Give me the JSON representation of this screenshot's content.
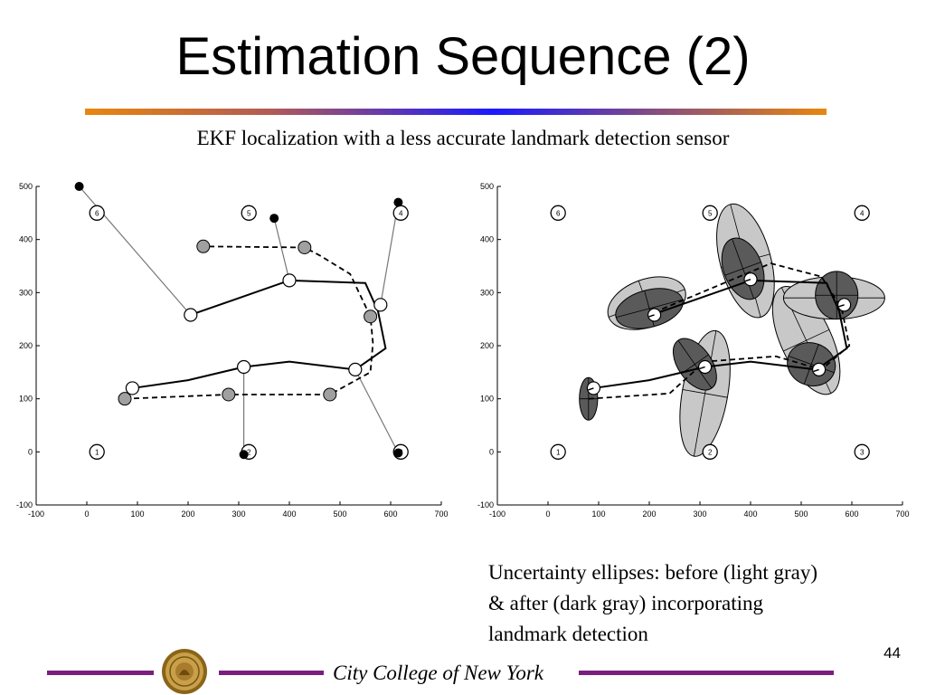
{
  "slide": {
    "title": "Estimation Sequence (2)",
    "subtitle": "EKF localization with a less accurate landmark detection sensor",
    "caption": [
      "Uncertainty ellipses: before (light gray)",
      "& after (dark gray) incorporating",
      "landmark detection"
    ],
    "page_number": "44",
    "footer": "City College of New York"
  },
  "colors": {
    "title_rule": [
      "#e8870e",
      "#1a1aff"
    ],
    "footer_rule": "#7a1f7f",
    "light_gray": "#c8c8c8",
    "dark_gray": "#5a5a5a",
    "marker_gray": "#a0a0a0"
  },
  "chart_data": [
    {
      "type": "line",
      "title": "",
      "xlabel": "",
      "ylabel": "",
      "xlim": [
        -100,
        700
      ],
      "ylim": [
        -100,
        500
      ],
      "x_ticks": [
        "-100",
        "0",
        "100",
        "200",
        "300",
        "400",
        "500",
        "600",
        "700"
      ],
      "y_ticks": [
        "-100",
        "0",
        "100",
        "200",
        "300",
        "400",
        "500"
      ],
      "landmarks": [
        {
          "label": "1",
          "x": 20,
          "y": 0
        },
        {
          "label": "2",
          "x": 320,
          "y": 0
        },
        {
          "label": "3",
          "x": 620,
          "y": 0
        },
        {
          "label": "4",
          "x": 620,
          "y": 450
        },
        {
          "label": "5",
          "x": 320,
          "y": 450
        },
        {
          "label": "6",
          "x": 20,
          "y": 450
        }
      ],
      "true_path": [
        [
          90,
          120
        ],
        [
          200,
          135
        ],
        [
          310,
          160
        ],
        [
          400,
          170
        ],
        [
          530,
          155
        ],
        [
          590,
          195
        ],
        [
          575,
          265
        ],
        [
          550,
          318
        ],
        [
          400,
          323
        ],
        [
          205,
          258
        ]
      ],
      "estimated_path": [
        [
          75,
          100
        ],
        [
          280,
          108
        ],
        [
          480,
          108
        ],
        [
          560,
          150
        ],
        [
          565,
          205
        ],
        [
          560,
          255
        ],
        [
          520,
          335
        ],
        [
          460,
          370
        ],
        [
          430,
          385
        ],
        [
          230,
          387
        ]
      ],
      "true_poses": [
        [
          90,
          120
        ],
        [
          310,
          160
        ],
        [
          530,
          155
        ],
        [
          580,
          277
        ],
        [
          400,
          323
        ],
        [
          205,
          258
        ]
      ],
      "predicted_poses": [
        [
          75,
          100
        ],
        [
          280,
          108
        ],
        [
          480,
          108
        ],
        [
          560,
          255
        ],
        [
          430,
          385
        ],
        [
          230,
          387
        ]
      ],
      "detections": [
        {
          "from": [
            310,
            160
          ],
          "to": [
            310,
            -5
          ]
        },
        {
          "from": [
            530,
            155
          ],
          "to": [
            615,
            -2
          ]
        },
        {
          "from": [
            580,
            277
          ],
          "to": [
            615,
            470
          ]
        },
        {
          "from": [
            400,
            323
          ],
          "to": [
            370,
            440
          ]
        },
        {
          "from": [
            205,
            258
          ],
          "to": [
            -15,
            500
          ]
        }
      ],
      "detected_points": [
        [
          310,
          -5
        ],
        [
          615,
          -2
        ],
        [
          615,
          470
        ],
        [
          370,
          440
        ],
        [
          -15,
          500
        ]
      ]
    },
    {
      "type": "line",
      "title": "",
      "xlabel": "",
      "ylabel": "",
      "xlim": [
        -100,
        700
      ],
      "ylim": [
        -100,
        500
      ],
      "x_ticks": [
        "-100",
        "0",
        "100",
        "200",
        "300",
        "400",
        "500",
        "600",
        "700"
      ],
      "y_ticks": [
        "-100",
        "0",
        "100",
        "200",
        "300",
        "400",
        "500"
      ],
      "landmarks": [
        {
          "label": "1",
          "x": 20,
          "y": 0
        },
        {
          "label": "2",
          "x": 320,
          "y": 0
        },
        {
          "label": "3",
          "x": 620,
          "y": 0
        },
        {
          "label": "4",
          "x": 620,
          "y": 450
        },
        {
          "label": "5",
          "x": 320,
          "y": 450
        },
        {
          "label": "6",
          "x": 20,
          "y": 450
        }
      ],
      "true_path": [
        [
          90,
          120
        ],
        [
          200,
          135
        ],
        [
          310,
          160
        ],
        [
          400,
          170
        ],
        [
          530,
          155
        ],
        [
          590,
          195
        ],
        [
          575,
          265
        ],
        [
          550,
          318
        ],
        [
          400,
          323
        ],
        [
          205,
          258
        ]
      ],
      "estimated_path": [
        [
          80,
          100
        ],
        [
          240,
          110
        ],
        [
          310,
          170
        ],
        [
          450,
          180
        ],
        [
          540,
          155
        ],
        [
          595,
          200
        ],
        [
          580,
          270
        ],
        [
          540,
          330
        ],
        [
          440,
          355
        ],
        [
          215,
          265
        ]
      ],
      "poses": [
        [
          90,
          120
        ],
        [
          310,
          160
        ],
        [
          535,
          155
        ],
        [
          585,
          277
        ],
        [
          400,
          325
        ],
        [
          210,
          258
        ]
      ],
      "uncertainty_before": [
        {
          "x": 310,
          "y": 110,
          "rx": 45,
          "ry": 120,
          "angle": 10
        },
        {
          "x": 510,
          "y": 210,
          "rx": 50,
          "ry": 110,
          "angle": -25
        },
        {
          "x": 565,
          "y": 290,
          "rx": 100,
          "ry": 40,
          "angle": 0
        },
        {
          "x": 390,
          "y": 360,
          "rx": 50,
          "ry": 110,
          "angle": -15
        },
        {
          "x": 195,
          "y": 280,
          "rx": 80,
          "ry": 45,
          "angle": -20
        }
      ],
      "uncertainty_after": [
        {
          "x": 80,
          "y": 100,
          "rx": 18,
          "ry": 40,
          "angle": 0
        },
        {
          "x": 290,
          "y": 165,
          "rx": 33,
          "ry": 55,
          "angle": -35
        },
        {
          "x": 520,
          "y": 165,
          "rx": 48,
          "ry": 40,
          "angle": 20
        },
        {
          "x": 570,
          "y": 295,
          "rx": 42,
          "ry": 45,
          "angle": 0
        },
        {
          "x": 385,
          "y": 345,
          "rx": 38,
          "ry": 60,
          "angle": -20
        },
        {
          "x": 200,
          "y": 270,
          "rx": 68,
          "ry": 35,
          "angle": -15
        }
      ]
    }
  ]
}
